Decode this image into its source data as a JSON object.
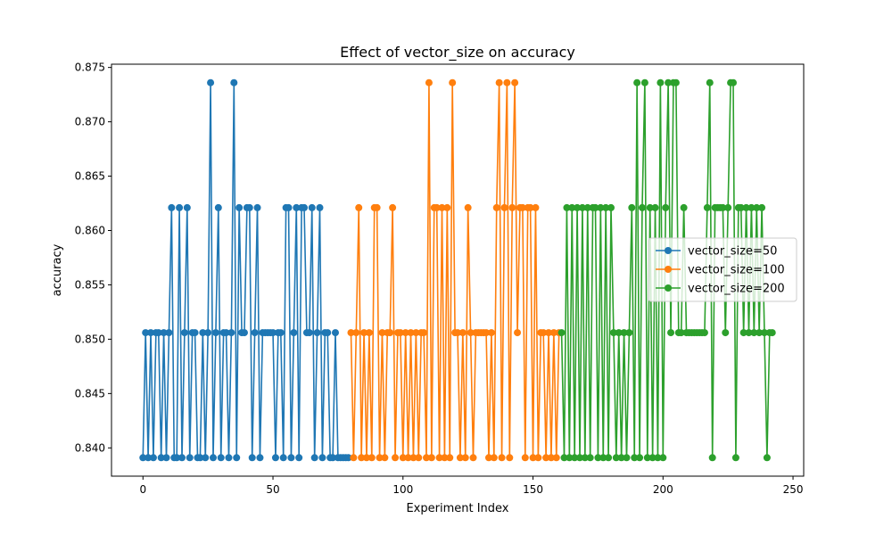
{
  "chart_data": {
    "type": "line",
    "title": "Effect of vector_size on accuracy",
    "xlabel": "Experiment Index",
    "ylabel": "accuracy",
    "xlim": [
      -12.1,
      254.1
    ],
    "ylim": [
      0.8374,
      0.8753
    ],
    "xticks": [
      0,
      50,
      100,
      150,
      200,
      250
    ],
    "xtick_labels": [
      "0",
      "50",
      "100",
      "150",
      "200",
      "250"
    ],
    "yticks": [
      0.84,
      0.845,
      0.85,
      0.855,
      0.86,
      0.865,
      0.87,
      0.875
    ],
    "ytick_labels": [
      "0.840",
      "0.845",
      "0.850",
      "0.855",
      "0.860",
      "0.865",
      "0.870",
      "0.875"
    ],
    "grid": false,
    "legend": {
      "position": "center-right"
    },
    "series": [
      {
        "name": "vector_size=50",
        "color": "#1f77b4",
        "x_start": 0,
        "y": [
          0.8391,
          0.8506,
          0.8391,
          0.8506,
          0.8391,
          0.8506,
          0.8506,
          0.8391,
          0.8506,
          0.8391,
          0.8506,
          0.8621,
          0.8391,
          0.8391,
          0.8621,
          0.8391,
          0.8506,
          0.8621,
          0.8391,
          0.8506,
          0.8506,
          0.8391,
          0.8391,
          0.8506,
          0.8391,
          0.8506,
          0.8736,
          0.8391,
          0.8506,
          0.8621,
          0.8391,
          0.8506,
          0.8506,
          0.8391,
          0.8506,
          0.8736,
          0.8391,
          0.8621,
          0.8506,
          0.8506,
          0.8621,
          0.8621,
          0.8391,
          0.8506,
          0.8621,
          0.8391,
          0.8506,
          0.8506,
          0.8506,
          0.8506,
          0.8506,
          0.8391,
          0.8506,
          0.8506,
          0.8391,
          0.8621,
          0.8621,
          0.8391,
          0.8506,
          0.8621,
          0.8391,
          0.8621,
          0.8621,
          0.8506,
          0.8506,
          0.8621,
          0.8391,
          0.8506,
          0.8621,
          0.8391,
          0.8506,
          0.8506,
          0.8391,
          0.8391,
          0.8506,
          0.8391,
          0.8391,
          0.8391,
          0.8391,
          0.8391
        ]
      },
      {
        "name": "vector_size=100",
        "color": "#ff7f0e",
        "x_start": 80,
        "y": [
          0.8506,
          0.8391,
          0.8506,
          0.8621,
          0.8391,
          0.8506,
          0.8391,
          0.8506,
          0.8391,
          0.8621,
          0.8621,
          0.8391,
          0.8506,
          0.8391,
          0.8506,
          0.8506,
          0.8621,
          0.8391,
          0.8506,
          0.8506,
          0.8391,
          0.8506,
          0.8391,
          0.8506,
          0.8391,
          0.8506,
          0.8391,
          0.8506,
          0.8506,
          0.8391,
          0.8736,
          0.8391,
          0.8621,
          0.8621,
          0.8391,
          0.8621,
          0.8391,
          0.8621,
          0.8391,
          0.8736,
          0.8506,
          0.8506,
          0.8391,
          0.8506,
          0.8391,
          0.8621,
          0.8506,
          0.8391,
          0.8506,
          0.8506,
          0.8506,
          0.8506,
          0.8506,
          0.8391,
          0.8506,
          0.8391,
          0.8621,
          0.8736,
          0.8391,
          0.8621,
          0.8736,
          0.8391,
          0.8621,
          0.8736,
          0.8506,
          0.8621,
          0.8621,
          0.8391,
          0.8621,
          0.8621,
          0.8391,
          0.8621,
          0.8391,
          0.8506,
          0.8506,
          0.8391,
          0.8506,
          0.8391,
          0.8506,
          0.8391,
          0.8506
        ]
      },
      {
        "name": "vector_size=200",
        "color": "#2ca02c",
        "x_start": 161,
        "y": [
          0.8506,
          0.8391,
          0.8621,
          0.8391,
          0.8621,
          0.8391,
          0.8621,
          0.8391,
          0.8621,
          0.8391,
          0.8621,
          0.8391,
          0.8621,
          0.8621,
          0.8391,
          0.8621,
          0.8391,
          0.8621,
          0.8391,
          0.8621,
          0.8506,
          0.8391,
          0.8506,
          0.8391,
          0.8506,
          0.8391,
          0.8506,
          0.8621,
          0.8391,
          0.8736,
          0.8391,
          0.8621,
          0.8736,
          0.8391,
          0.8621,
          0.8391,
          0.8621,
          0.8391,
          0.8736,
          0.8391,
          0.8621,
          0.8736,
          0.8506,
          0.8736,
          0.8736,
          0.8506,
          0.8506,
          0.8621,
          0.8506,
          0.8506,
          0.8506,
          0.8506,
          0.8506,
          0.8506,
          0.8506,
          0.8506,
          0.8621,
          0.8736,
          0.8391,
          0.8621,
          0.8621,
          0.8621,
          0.8621,
          0.8506,
          0.8621,
          0.8736,
          0.8736,
          0.8391,
          0.8621,
          0.8621,
          0.8506,
          0.8621,
          0.8506,
          0.8621,
          0.8506,
          0.8621,
          0.8506,
          0.8621,
          0.8506,
          0.8391,
          0.8506,
          0.8506
        ]
      }
    ]
  }
}
